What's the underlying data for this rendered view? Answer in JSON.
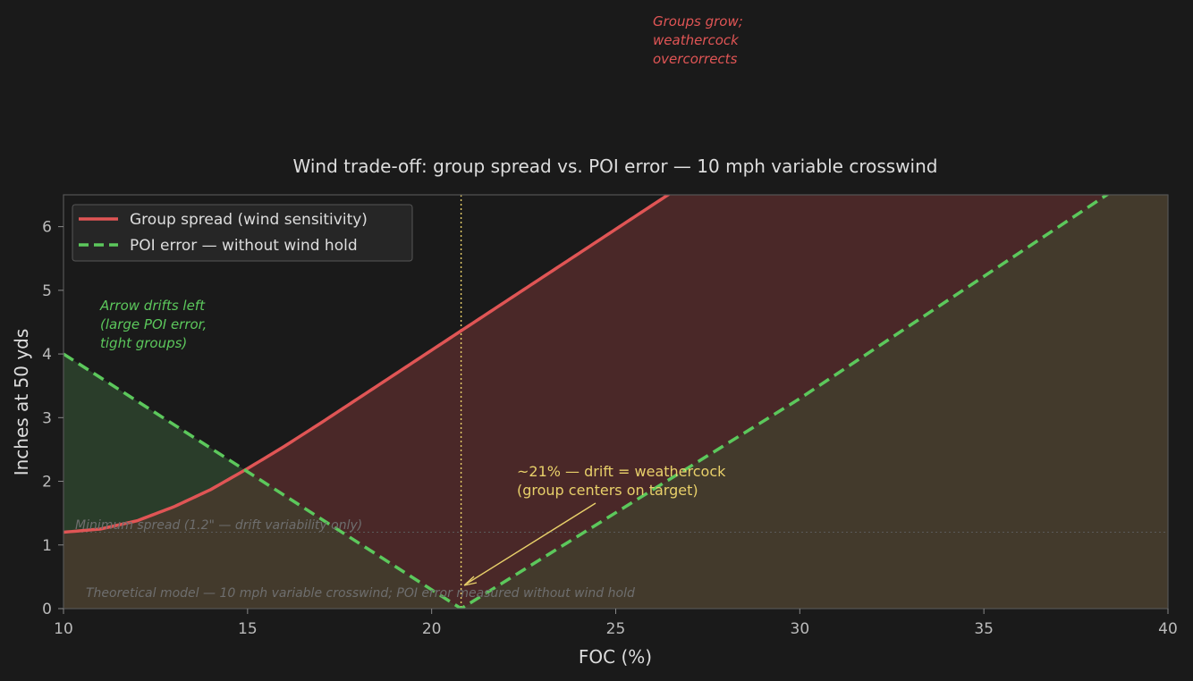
{
  "chart_data": {
    "type": "line",
    "title": "Wind trade-off: group spread vs. POI error — 10 mph variable crosswind",
    "xlabel": "FOC (%)",
    "ylabel": "Inches at 50 yds",
    "xlim": [
      10,
      40
    ],
    "ylim": [
      0,
      6.5
    ],
    "xticks": [
      "10",
      "15",
      "20",
      "25",
      "30",
      "35",
      "40"
    ],
    "yticks": [
      "0",
      "1",
      "2",
      "3",
      "4",
      "5",
      "6"
    ],
    "legend_position": "top-left",
    "grid": false,
    "series": [
      {
        "name": "Group spread (wind sensitivity)",
        "color": "#e05555",
        "style": "solid",
        "points": [
          [
            10,
            1.2
          ],
          [
            11,
            1.25
          ],
          [
            12,
            1.38
          ],
          [
            13,
            1.6
          ],
          [
            14,
            1.87
          ],
          [
            15,
            2.2
          ],
          [
            16,
            2.55
          ],
          [
            17,
            2.92
          ],
          [
            18,
            3.3
          ],
          [
            19,
            3.68
          ],
          [
            20,
            4.06
          ],
          [
            21,
            4.44
          ],
          [
            22,
            4.82
          ],
          [
            23,
            5.2
          ],
          [
            24,
            5.58
          ],
          [
            25,
            5.96
          ],
          [
            26,
            6.34
          ],
          [
            27,
            6.72
          ]
        ]
      },
      {
        "name": "POI error — without wind hold",
        "color": "#5cc85c",
        "style": "dashed",
        "points": [
          [
            10,
            4.0
          ],
          [
            15,
            2.15
          ],
          [
            20.8,
            0.0
          ],
          [
            30,
            3.3
          ],
          [
            38.6,
            6.6
          ]
        ]
      }
    ],
    "vline": {
      "x": 20.8,
      "color": "#e8d06a"
    },
    "hline": {
      "y": 1.2,
      "label": "Minimum spread (1.2\" — drift variability only)"
    },
    "annotations": {
      "left_region": [
        "Arrow drifts left",
        "(large POI error,",
        "tight groups)"
      ],
      "right_region": [
        "Groups grow;",
        "weathercock",
        "overcorrects"
      ],
      "crossover": [
        "~21% — drift = weathercock",
        "(group centers on target)"
      ],
      "footnote": "Theoretical model — 10 mph variable crosswind; POI error measured without wind hold"
    },
    "colors": {
      "background": "#1a1a1a",
      "axes_frame": "#555555",
      "text": "#dddddd",
      "tick_text": "#bbbbbb",
      "drift_fill": "#2a3d2a",
      "spread_fill": "#4a2828",
      "lower_fill": "#433a2c",
      "annotation_yellow": "#e8d06a",
      "muted": "#6e6e6e"
    }
  }
}
